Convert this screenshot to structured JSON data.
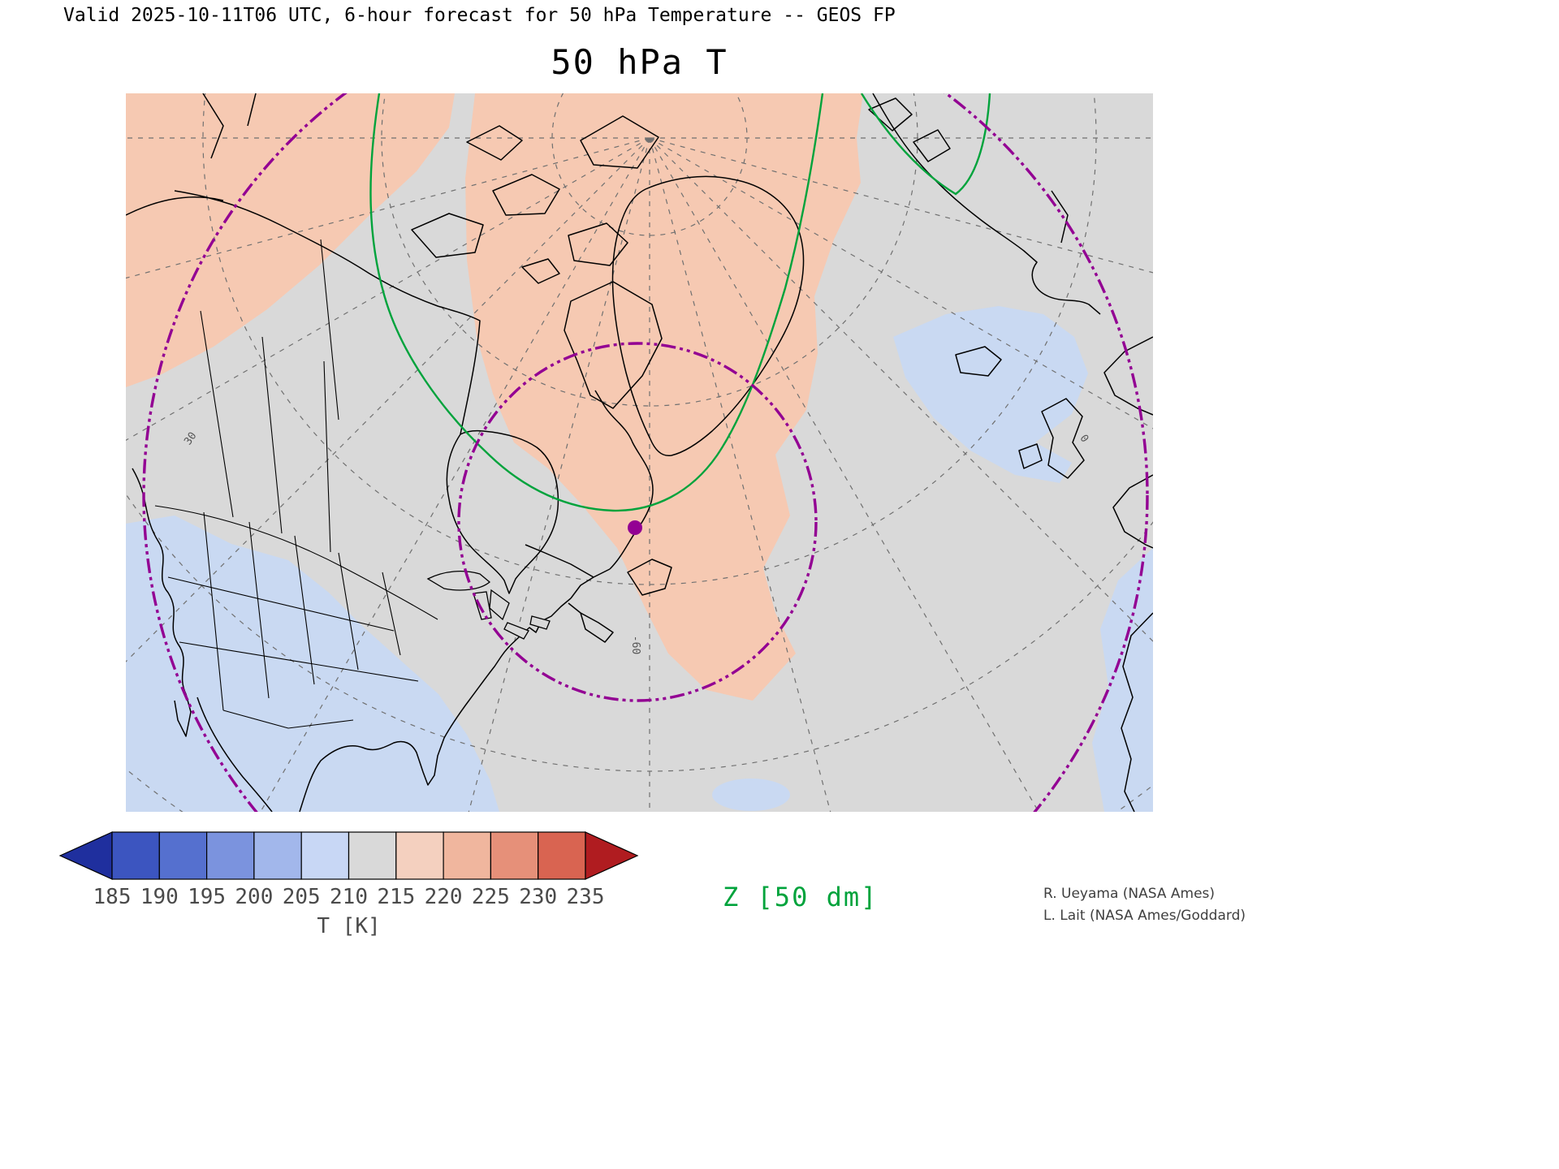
{
  "header": {
    "valid_line": "Valid 2025-10-11T06 UTC, 6-hour forecast for 50 hPa Temperature -- GEOS FP",
    "title": "50 hPa T"
  },
  "map": {
    "background_color": "#d9d9d9",
    "warm_region_color": "#f6c9b2",
    "cool_region_color": "#c9d9f2",
    "coastline_color": "#000000",
    "graticule_color": "#707070",
    "vortex_contour_color": "#930093",
    "z_contour_color": "#00a33c",
    "marker_color": "#930093",
    "graticule_labels": [
      {
        "text": "30"
      },
      {
        "text": "-60"
      },
      {
        "text": "0"
      }
    ]
  },
  "colorbar": {
    "title": "T [K]",
    "tick_labels": [
      "185",
      "190",
      "195",
      "200",
      "205",
      "210",
      "215",
      "220",
      "225",
      "230",
      "235"
    ],
    "segment_colors": [
      "#3c55c0",
      "#5570cf",
      "#7b93de",
      "#a2b7eb",
      "#c8d7f5",
      "#d9d9d9",
      "#f4d0bf",
      "#f0b69e",
      "#e69079",
      "#d96451"
    ],
    "under_arrow_color": "#1f2f9e",
    "over_arrow_color": "#b01c20"
  },
  "legend": {
    "z_label": "Z [50 dm]",
    "z_label_color": "#00a33c"
  },
  "credits": {
    "line1": "R. Ueyama (NASA Ames)",
    "line2": "L. Lait (NASA Ames/Goddard)"
  }
}
